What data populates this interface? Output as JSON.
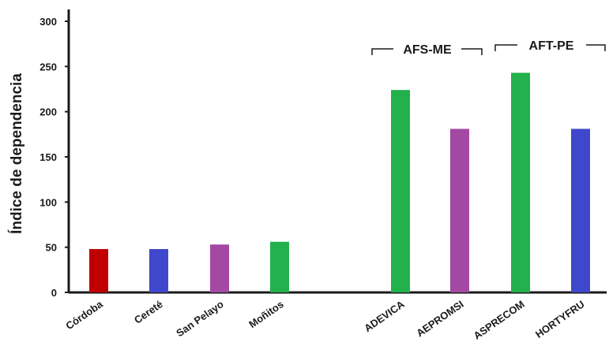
{
  "chart_data": {
    "type": "bar",
    "ylabel": "Índice de dependencia",
    "ylim": [
      0,
      300
    ],
    "yticks": [
      0,
      50,
      100,
      150,
      200,
      250,
      300
    ],
    "bars": [
      {
        "label": "Córdoba",
        "value": 48,
        "color": "#c00000"
      },
      {
        "label": "Cereté",
        "value": 48,
        "color": "#3f48cc"
      },
      {
        "label": "San Pelayo",
        "value": 53,
        "color": "#a349a4"
      },
      {
        "label": "Moñitos",
        "value": 56,
        "color": "#22b14c"
      },
      {
        "label": "ADEVICA",
        "value": 224,
        "color": "#22b14c"
      },
      {
        "label": "AEPROMSI",
        "value": 181,
        "color": "#a349a4"
      },
      {
        "label": "ASPRECOM",
        "value": 243,
        "color": "#22b14c"
      },
      {
        "label": "HORTYFRU",
        "value": 181,
        "color": "#3f48cc"
      }
    ],
    "groups": [
      {
        "label": "AFS-ME",
        "from": 4,
        "to": 5
      },
      {
        "label": "AFT-PE",
        "from": 6,
        "to": 7
      }
    ],
    "grid": false
  }
}
